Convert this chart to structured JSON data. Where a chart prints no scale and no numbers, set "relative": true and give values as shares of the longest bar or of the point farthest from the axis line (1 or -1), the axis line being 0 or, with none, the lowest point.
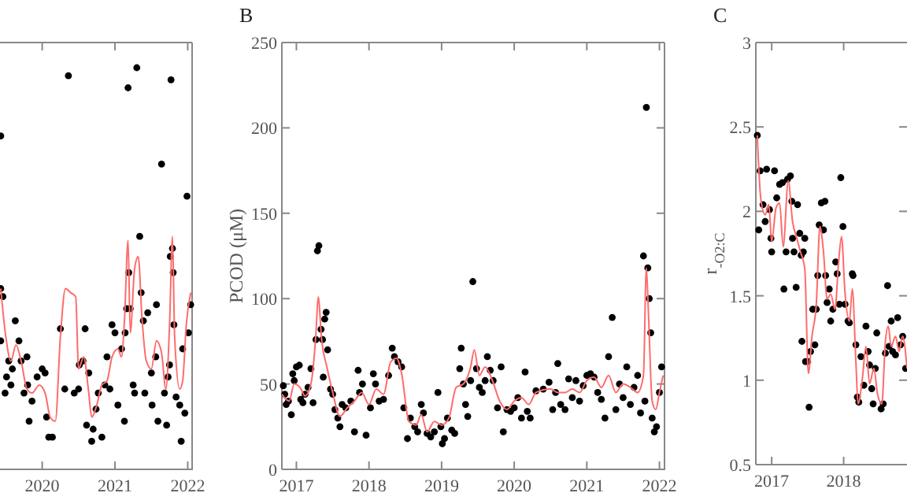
{
  "chart_data": [
    {
      "type": "scatter",
      "relative": true,
      "marker": "circle",
      "grid": false,
      "xlim": [
        2019.42,
        2022.06
      ],
      "xticks": [
        2020,
        2021,
        2022
      ],
      "series": [
        {
          "type": "scatter",
          "color": "#000000",
          "x": [
            2019.43,
            2019.43,
            2019.43,
            2019.46,
            2019.49,
            2019.51,
            2019.54,
            2019.57,
            2019.59,
            2019.63,
            2019.68,
            2019.71,
            2019.75,
            2019.79,
            2019.8,
            2019.82,
            2019.86,
            2019.93,
            2020.0,
            2020.04,
            2020.06,
            2020.09,
            2020.14,
            2020.25,
            2020.31,
            2020.36,
            2020.44,
            2020.5,
            2020.51,
            2020.56,
            2020.59,
            2020.61,
            2020.64,
            2020.68,
            2020.7,
            2020.74,
            2020.77,
            2020.82,
            2020.86,
            2020.89,
            2020.93,
            2020.96,
            2021.0,
            2021.04,
            2021.09,
            2021.13,
            2021.14,
            2021.16,
            2021.18,
            2021.19,
            2021.21,
            2021.25,
            2021.27,
            2021.3,
            2021.34,
            2021.36,
            2021.39,
            2021.41,
            2021.45,
            2021.5,
            2021.51,
            2021.56,
            2021.57,
            2021.59,
            2021.64,
            2021.68,
            2021.71,
            2021.73,
            2021.75,
            2021.76,
            2021.77,
            2021.79,
            2021.8,
            2021.81,
            2021.84,
            2021.89,
            2021.91,
            2021.93,
            2021.96,
            2021.99,
            2022.01,
            2022.04
          ],
          "values": [
            0.83,
            0.32,
            0.45,
            0.43,
            0.19,
            0.23,
            0.27,
            0.21,
            0.25,
            0.37,
            0.32,
            0.27,
            0.19,
            0.28,
            0.21,
            0.12,
            0.17,
            0.23,
            0.25,
            0.24,
            0.13,
            0.08,
            0.08,
            0.35,
            0.2,
            0.98,
            0.19,
            0.2,
            0.26,
            0.27,
            0.35,
            0.11,
            0.24,
            0.07,
            0.1,
            0.15,
            0.19,
            0.08,
            0.21,
            0.28,
            0.2,
            0.36,
            0.34,
            0.16,
            0.3,
            0.12,
            0.34,
            0.4,
            0.95,
            0.49,
            0.4,
            0.21,
            0.19,
            1.0,
            0.58,
            0.44,
            0.37,
            0.19,
            0.39,
            0.24,
            0.16,
            0.28,
            0.41,
            0.12,
            0.76,
            0.19,
            0.11,
            0.23,
            0.26,
            0.53,
            0.97,
            0.55,
            0.49,
            0.36,
            0.18,
            0.16,
            0.07,
            0.3,
            0.14,
            0.68,
            0.34,
            0.41
          ]
        },
        {
          "type": "line",
          "marker": "none",
          "color": "#ff6b6b",
          "x": [
            2019.43,
            2019.5,
            2019.57,
            2019.64,
            2019.71,
            2019.79,
            2019.86,
            2019.96,
            2020.04,
            2020.11,
            2020.18,
            2020.25,
            2020.32,
            2020.39,
            2020.46,
            2020.5,
            2020.57,
            2020.64,
            2020.68,
            2020.75,
            2020.82,
            2020.89,
            2020.96,
            2021.04,
            2021.09,
            2021.13,
            2021.18,
            2021.21,
            2021.27,
            2021.32,
            2021.37,
            2021.43,
            2021.5,
            2021.57,
            2021.64,
            2021.7,
            2021.75,
            2021.79,
            2021.82,
            2021.89,
            2021.93,
            2021.98,
            2022.04
          ],
          "values": [
            0.45,
            0.33,
            0.27,
            0.31,
            0.27,
            0.2,
            0.19,
            0.21,
            0.19,
            0.13,
            0.12,
            0.33,
            0.45,
            0.44,
            0.43,
            0.25,
            0.28,
            0.19,
            0.13,
            0.16,
            0.21,
            0.22,
            0.28,
            0.3,
            0.28,
            0.37,
            0.57,
            0.34,
            0.5,
            0.53,
            0.38,
            0.27,
            0.25,
            0.32,
            0.29,
            0.2,
            0.36,
            0.58,
            0.33,
            0.2,
            0.22,
            0.36,
            0.44
          ]
        }
      ]
    },
    {
      "type": "scatter",
      "title": "B",
      "ylabel": "PCOD (μM)",
      "marker": "circle",
      "grid": false,
      "xlim": [
        2016.8,
        2022.07
      ],
      "xticks": [
        2017,
        2018,
        2019,
        2020,
        2021,
        2022
      ],
      "ylim": [
        0,
        250
      ],
      "yticks": [
        0,
        50,
        100,
        150,
        200,
        250
      ],
      "series": [
        {
          "type": "scatter",
          "color": "#000000",
          "x": [
            2016.82,
            2016.84,
            2016.86,
            2016.89,
            2016.93,
            2016.95,
            2016.97,
            2017.0,
            2017.04,
            2017.06,
            2017.09,
            2017.12,
            2017.16,
            2017.2,
            2017.23,
            2017.27,
            2017.29,
            2017.31,
            2017.34,
            2017.36,
            2017.37,
            2017.39,
            2017.41,
            2017.43,
            2017.47,
            2017.5,
            2017.53,
            2017.57,
            2017.6,
            2017.63,
            2017.68,
            2017.75,
            2017.8,
            2017.85,
            2017.87,
            2017.91,
            2017.96,
            2018.02,
            2018.06,
            2018.09,
            2018.14,
            2018.2,
            2018.27,
            2018.32,
            2018.35,
            2018.4,
            2018.45,
            2018.48,
            2018.53,
            2018.57,
            2018.63,
            2018.67,
            2018.72,
            2018.75,
            2018.8,
            2018.85,
            2018.9,
            2018.95,
            2018.99,
            2019.01,
            2019.04,
            2019.08,
            2019.14,
            2019.18,
            2019.25,
            2019.27,
            2019.3,
            2019.33,
            2019.36,
            2019.4,
            2019.43,
            2019.48,
            2019.52,
            2019.56,
            2019.6,
            2019.63,
            2019.67,
            2019.71,
            2019.77,
            2019.82,
            2019.85,
            2019.9,
            2019.95,
            2020.0,
            2020.05,
            2020.1,
            2020.15,
            2020.18,
            2020.22,
            2020.3,
            2020.4,
            2020.48,
            2020.53,
            2020.57,
            2020.6,
            2020.64,
            2020.7,
            2020.75,
            2020.8,
            2020.85,
            2020.9,
            2020.95,
            2021.0,
            2021.05,
            2021.1,
            2021.15,
            2021.2,
            2021.25,
            2021.3,
            2021.35,
            2021.4,
            2021.45,
            2021.5,
            2021.55,
            2021.6,
            2021.65,
            2021.7,
            2021.74,
            2021.78,
            2021.8,
            2021.82,
            2021.84,
            2021.86,
            2021.88,
            2021.9,
            2021.93,
            2021.96,
            2022.0,
            2022.03
          ],
          "values": [
            49,
            44,
            38,
            40,
            32,
            56,
            52,
            60,
            61,
            41,
            39,
            44,
            48,
            59,
            39,
            76,
            128,
            131,
            82,
            76,
            54,
            88,
            92,
            70,
            47,
            44,
            35,
            30,
            25,
            38,
            36,
            40,
            22,
            58,
            45,
            50,
            20,
            36,
            56,
            50,
            40,
            41,
            55,
            71,
            66,
            63,
            60,
            36,
            18,
            30,
            25,
            22,
            38,
            33,
            21,
            19,
            22,
            45,
            25,
            15,
            18,
            30,
            23,
            21,
            59,
            71,
            50,
            38,
            31,
            52,
            110,
            59,
            48,
            45,
            52,
            66,
            58,
            52,
            36,
            60,
            22,
            35,
            34,
            36,
            42,
            30,
            57,
            34,
            30,
            46,
            47,
            51,
            35,
            45,
            62,
            38,
            35,
            53,
            42,
            52,
            40,
            49,
            55,
            56,
            54,
            45,
            41,
            30,
            66,
            89,
            35,
            50,
            42,
            60,
            38,
            48,
            55,
            33,
            125,
            40,
            212,
            118,
            100,
            80,
            30,
            22,
            25,
            45,
            60
          ]
        },
        {
          "type": "line",
          "marker": "none",
          "color": "#ff6b6b",
          "x": [
            2016.8,
            2016.9,
            2016.97,
            2017.05,
            2017.12,
            2017.2,
            2017.27,
            2017.3,
            2017.35,
            2017.42,
            2017.5,
            2017.6,
            2017.7,
            2017.8,
            2017.9,
            2018.0,
            2018.1,
            2018.2,
            2018.3,
            2018.38,
            2018.45,
            2018.55,
            2018.65,
            2018.72,
            2018.8,
            2018.9,
            2019.0,
            2019.1,
            2019.2,
            2019.3,
            2019.4,
            2019.45,
            2019.52,
            2019.6,
            2019.7,
            2019.8,
            2019.9,
            2020.0,
            2020.1,
            2020.2,
            2020.3,
            2020.5,
            2020.6,
            2020.7,
            2020.8,
            2020.9,
            2021.0,
            2021.1,
            2021.2,
            2021.3,
            2021.4,
            2021.5,
            2021.6,
            2021.7,
            2021.78,
            2021.82,
            2021.85,
            2021.9,
            2021.95,
            2022.0,
            2022.05
          ],
          "values": [
            44,
            40,
            50,
            48,
            43,
            50,
            80,
            101,
            75,
            60,
            45,
            31,
            36,
            40,
            45,
            38,
            47,
            44,
            63,
            65,
            56,
            28,
            26,
            32,
            22,
            28,
            26,
            30,
            48,
            50,
            60,
            70,
            55,
            60,
            52,
            40,
            35,
            40,
            42,
            38,
            45,
            47,
            45,
            45,
            47,
            45,
            52,
            54,
            48,
            55,
            45,
            50,
            48,
            45,
            55,
            118,
            90,
            40,
            35,
            45,
            55
          ]
        }
      ]
    },
    {
      "type": "scatter",
      "title": "C",
      "ylabel": "r$_{-O2:C}$",
      "marker": "circle",
      "grid": false,
      "xlim": [
        2016.78,
        2018.88
      ],
      "xticks": [
        2017,
        2018
      ],
      "ylim": [
        0.5,
        3
      ],
      "yticks": [
        0.5,
        1,
        1.5,
        2,
        2.5,
        3
      ],
      "series": [
        {
          "type": "scatter",
          "color": "#000000",
          "x": [
            2016.8,
            2016.84,
            2016.82,
            2016.88,
            2016.93,
            2016.91,
            2016.97,
            2016.99,
            2017.0,
            2017.04,
            2017.07,
            2017.11,
            2017.15,
            2017.17,
            2017.2,
            2017.22,
            2017.26,
            2017.28,
            2017.29,
            2017.31,
            2017.34,
            2017.36,
            2017.39,
            2017.41,
            2017.44,
            2017.46,
            2017.42,
            2017.47,
            2017.5,
            2017.52,
            2017.54,
            2017.57,
            2017.6,
            2017.62,
            2017.64,
            2017.66,
            2017.69,
            2017.72,
            2017.74,
            2017.75,
            2017.77,
            2017.8,
            2017.82,
            2017.85,
            2017.89,
            2017.91,
            2017.94,
            2017.96,
            2017.99,
            2018.02,
            2018.06,
            2018.08,
            2018.12,
            2018.13,
            2018.17,
            2018.19,
            2018.21,
            2018.24,
            2018.28,
            2018.31,
            2018.34,
            2018.36,
            2018.39,
            2018.41,
            2018.44,
            2018.46,
            2018.52,
            2018.55,
            2018.58,
            2018.61,
            2018.63,
            2018.66,
            2018.68,
            2018.72,
            2018.75,
            2018.79,
            2018.82,
            2018.86
          ],
          "values": [
            2.45,
            2.24,
            1.89,
            2.04,
            2.25,
            1.94,
            2.01,
            1.84,
            1.76,
            2.24,
            2.08,
            2.16,
            2.17,
            1.54,
            1.76,
            2.19,
            2.21,
            2.06,
            1.84,
            1.76,
            1.55,
            2.04,
            1.87,
            1.74,
            1.76,
            1.84,
            1.23,
            1.11,
            1.11,
            0.84,
            1.17,
            1.42,
            1.21,
            1.42,
            1.62,
            1.92,
            2.05,
            1.89,
            2.06,
            1.62,
            1.46,
            1.54,
            1.35,
            1.42,
            1.7,
            1.63,
            1.45,
            2.2,
            1.91,
            1.45,
            1.35,
            1.34,
            1.63,
            1.62,
            1.21,
            0.9,
            0.87,
            1.14,
            0.97,
            1.32,
            1.17,
            1.09,
            0.95,
            0.86,
            1.07,
            1.28,
            0.83,
            0.86,
            1.16,
            1.56,
            1.2,
            1.35,
            1.17,
            1.15,
            1.37,
            1.21,
            1.26,
            1.07
          ]
        },
        {
          "type": "line",
          "marker": "none",
          "color": "#ff6b6b",
          "x": [
            2016.8,
            2016.85,
            2016.91,
            2016.96,
            2017.0,
            2017.06,
            2017.11,
            2017.16,
            2017.23,
            2017.29,
            2017.35,
            2017.4,
            2017.46,
            2017.51,
            2017.56,
            2017.62,
            2017.67,
            2017.72,
            2017.77,
            2017.82,
            2017.88,
            2017.93,
            2017.97,
            2018.02,
            2018.08,
            2018.12,
            2018.17,
            2018.2,
            2018.26,
            2018.31,
            2018.36,
            2018.42,
            2018.47,
            2018.53,
            2018.58,
            2018.62,
            2018.66,
            2018.72,
            2018.77,
            2018.82,
            2018.88
          ],
          "values": [
            2.45,
            2.07,
            1.98,
            2.04,
            1.82,
            2.02,
            2.05,
            1.79,
            2.18,
            1.94,
            1.84,
            1.76,
            1.66,
            1.04,
            1.26,
            1.45,
            1.91,
            1.76,
            1.48,
            1.51,
            1.42,
            1.7,
            1.85,
            1.51,
            1.35,
            1.54,
            1.11,
            0.86,
            1.01,
            1.2,
            0.98,
            1.07,
            0.92,
            0.86,
            1.23,
            1.32,
            1.2,
            1.26,
            1.17,
            1.26,
            1.07
          ]
        }
      ]
    }
  ]
}
